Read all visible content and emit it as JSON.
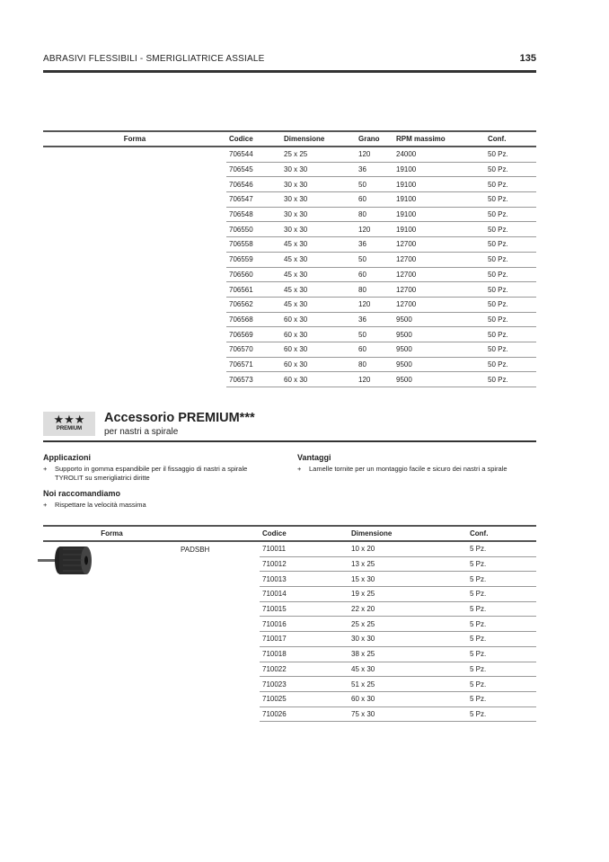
{
  "header": {
    "title": "ABRASIVI FLESSIBILI - SMERIGLIATRICE ASSIALE",
    "page_number": "135"
  },
  "table1": {
    "columns": [
      "Forma",
      "Codice",
      "Dimensione",
      "Grano",
      "RPM massimo",
      "Conf."
    ],
    "rows": [
      [
        "706544",
        "25 x 25",
        "120",
        "24000",
        "50 Pz."
      ],
      [
        "706545",
        "30 x 30",
        "36",
        "19100",
        "50 Pz."
      ],
      [
        "706546",
        "30 x 30",
        "50",
        "19100",
        "50 Pz."
      ],
      [
        "706547",
        "30 x 30",
        "60",
        "19100",
        "50 Pz."
      ],
      [
        "706548",
        "30 x 30",
        "80",
        "19100",
        "50 Pz."
      ],
      [
        "706550",
        "30 x 30",
        "120",
        "19100",
        "50 Pz."
      ],
      [
        "706558",
        "45 x 30",
        "36",
        "12700",
        "50 Pz."
      ],
      [
        "706559",
        "45 x 30",
        "50",
        "12700",
        "50 Pz."
      ],
      [
        "706560",
        "45 x 30",
        "60",
        "12700",
        "50 Pz."
      ],
      [
        "706561",
        "45 x 30",
        "80",
        "12700",
        "50 Pz."
      ],
      [
        "706562",
        "45 x 30",
        "120",
        "12700",
        "50 Pz."
      ],
      [
        "706568",
        "60 x 30",
        "36",
        "9500",
        "50 Pz."
      ],
      [
        "706569",
        "60 x 30",
        "50",
        "9500",
        "50 Pz."
      ],
      [
        "706570",
        "60 x 30",
        "60",
        "9500",
        "50 Pz."
      ],
      [
        "706571",
        "60 x 30",
        "80",
        "9500",
        "50 Pz."
      ],
      [
        "706573",
        "60 x 30",
        "120",
        "9500",
        "50 Pz."
      ]
    ]
  },
  "product": {
    "badge_stars": "★★★",
    "badge_label": "PREMIUM",
    "title": "Accessorio PREMIUM***",
    "subtitle": "per nastri a spirale",
    "applicazioni_title": "Applicazioni",
    "applicazioni": [
      "Supporto in gomma espandibile per il fissaggio di nastri a spirale TYROLIT su smerigliatrici diritte"
    ],
    "vantaggi_title": "Vantaggi",
    "vantaggi": [
      "Lamelle tornite per un montaggio facile e sicuro dei nastri a spirale"
    ],
    "raccomandiamo_title": "Noi raccomandiamo",
    "raccomandiamo": [
      "Rispettare la velocità massima"
    ],
    "bullet": "+"
  },
  "table2": {
    "columns": [
      "Forma",
      "Codice",
      "Dimensione",
      "Conf."
    ],
    "type_name": "PADSBH",
    "rows": [
      [
        "710011",
        "10 x 20",
        "5 Pz."
      ],
      [
        "710012",
        "13 x 25",
        "5 Pz."
      ],
      [
        "710013",
        "15 x 30",
        "5 Pz."
      ],
      [
        "710014",
        "19 x 25",
        "5 Pz."
      ],
      [
        "710015",
        "22 x 20",
        "5 Pz."
      ],
      [
        "710016",
        "25 x 25",
        "5 Pz."
      ],
      [
        "710017",
        "30 x 30",
        "5 Pz."
      ],
      [
        "710018",
        "38 x 25",
        "5 Pz."
      ],
      [
        "710022",
        "45 x 30",
        "5 Pz."
      ],
      [
        "710023",
        "51 x 25",
        "5 Pz."
      ],
      [
        "710025",
        "60 x 30",
        "5 Pz."
      ],
      [
        "710026",
        "75 x 30",
        "5 Pz."
      ]
    ]
  }
}
